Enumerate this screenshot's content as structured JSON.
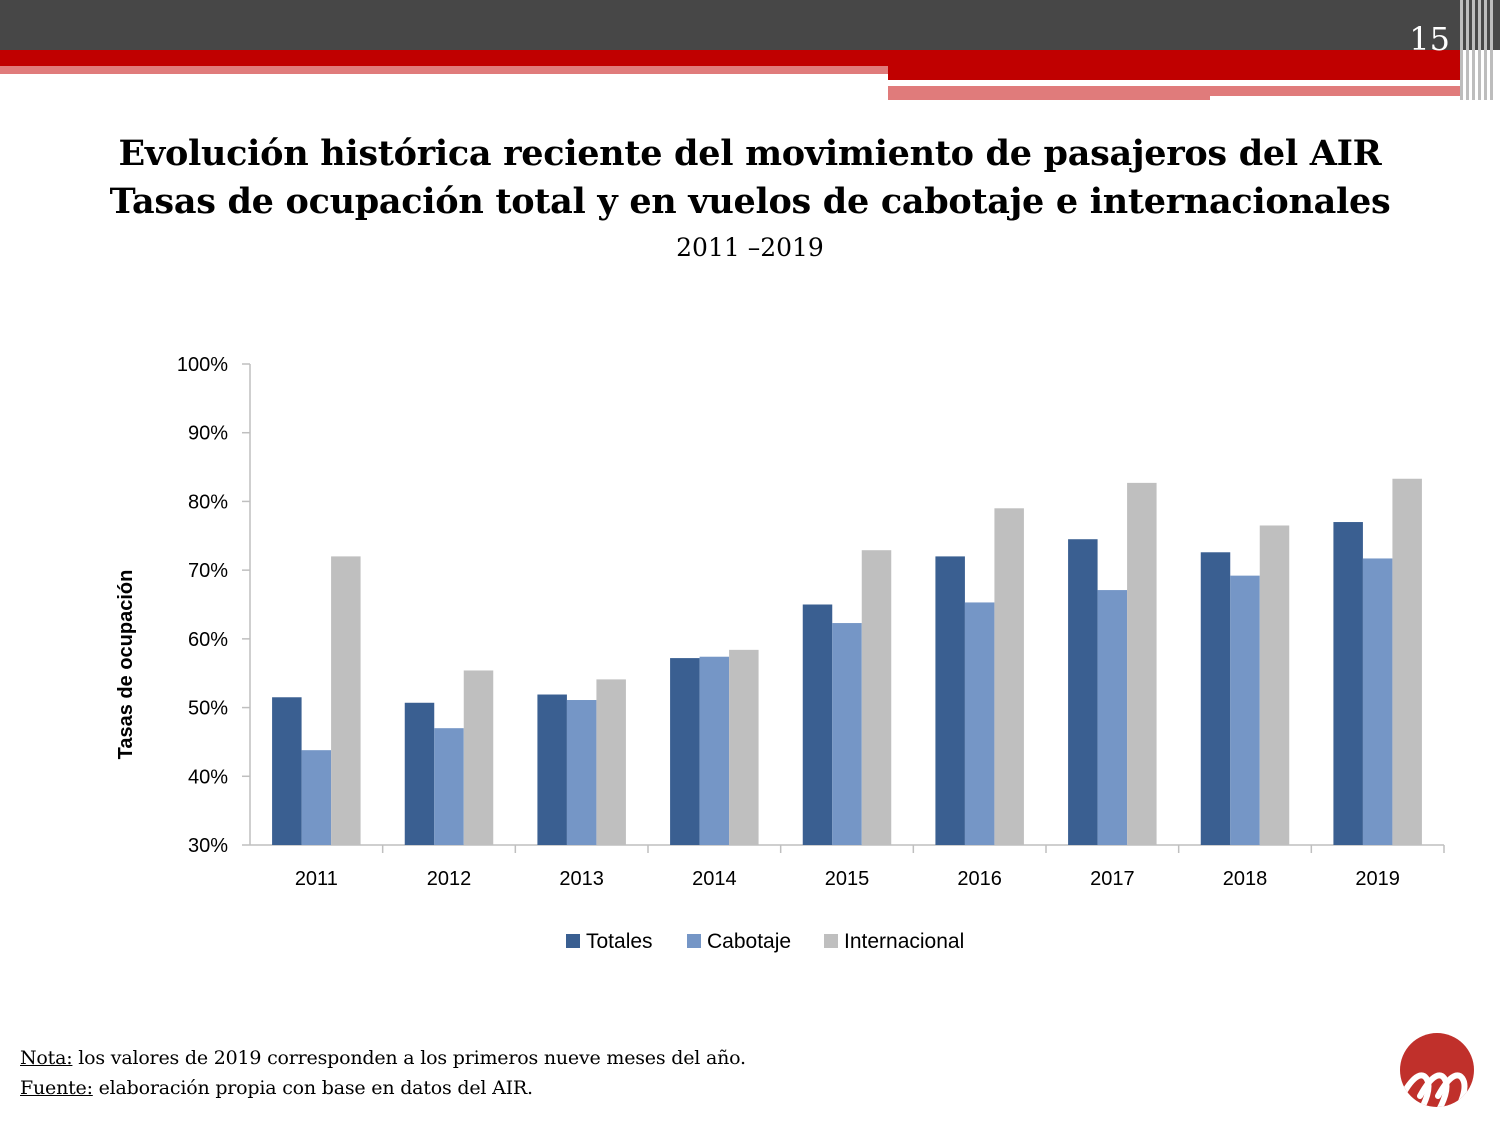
{
  "slide": {
    "page_number": "15",
    "title_line1": "Evolución histórica reciente del movimiento de pasajeros del AIR",
    "title_line2": "Tasas de ocupación total y en vuelos de cabotaje e internacionales",
    "subtitle": "2011 –2019"
  },
  "colors": {
    "header_dark": "#474747",
    "header_red": "#c00000",
    "header_pink": "#e07b7b",
    "logo_red": "#c0302b"
  },
  "chart_data": {
    "type": "bar",
    "categories": [
      "2011",
      "2012",
      "2013",
      "2014",
      "2015",
      "2016",
      "2017",
      "2018",
      "2019"
    ],
    "series": [
      {
        "name": "Totales",
        "color": "#3a5f91",
        "values": [
          51.5,
          50.7,
          51.9,
          57.2,
          65.0,
          72.0,
          74.5,
          72.6,
          77.0
        ]
      },
      {
        "name": "Cabotaje",
        "color": "#7596c6",
        "values": [
          43.8,
          47.0,
          51.1,
          57.4,
          62.3,
          65.3,
          67.1,
          69.2,
          71.7
        ]
      },
      {
        "name": "Internacional",
        "color": "#bfbfbf",
        "values": [
          72.0,
          55.4,
          54.1,
          58.4,
          72.9,
          79.0,
          82.7,
          76.5,
          83.3
        ]
      }
    ],
    "ylabel": "Tasas de ocupación",
    "ylim": [
      30,
      100
    ],
    "yticks": [
      "30%",
      "40%",
      "50%",
      "60%",
      "70%",
      "80%",
      "90%",
      "100%"
    ],
    "grid": false,
    "legend": "bottom"
  },
  "notes": {
    "note_label": "Nota:",
    "note_text": " los valores de 2019 corresponden a los primeros nueve meses del año.",
    "source_label": "Fuente:",
    "source_text": " elaboración propia con base en datos del AIR."
  }
}
